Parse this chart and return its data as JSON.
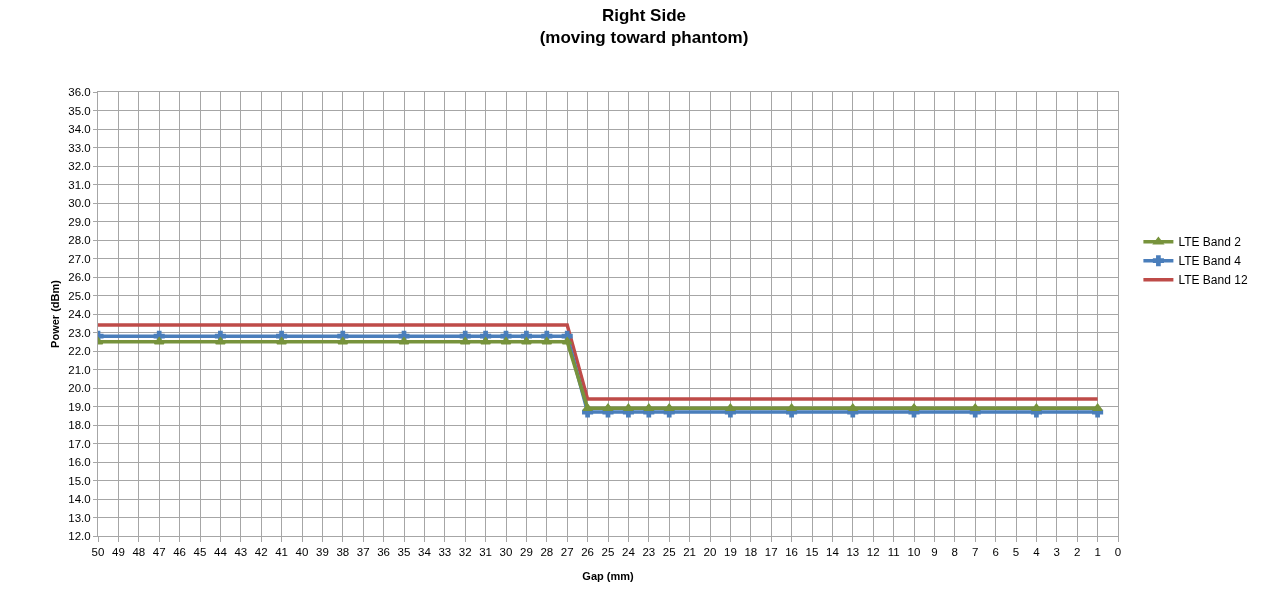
{
  "chart_data": {
    "type": "line",
    "title": "Right Side\n(moving toward phantom)",
    "xlabel": "Gap (mm)",
    "ylabel": "Power (dBm)",
    "categories": [
      "50",
      "49",
      "48",
      "47",
      "46",
      "45",
      "44",
      "43",
      "42",
      "41",
      "40",
      "39",
      "38",
      "37",
      "36",
      "35",
      "34",
      "33",
      "32",
      "31",
      "30",
      "29",
      "28",
      "27",
      "26",
      "25",
      "24",
      "23",
      "25",
      "21",
      "20",
      "19",
      "18",
      "17",
      "16",
      "15",
      "14",
      "13",
      "12",
      "11",
      "10",
      "9",
      "8",
      "7",
      "6",
      "5",
      "4",
      "3",
      "2",
      "1",
      "0"
    ],
    "series": [
      {
        "name": "LTE Band 2",
        "color": "#77933c",
        "marker": "triangle",
        "values": [
          22.5,
          null,
          null,
          22.5,
          null,
          null,
          22.5,
          null,
          null,
          22.5,
          null,
          null,
          22.5,
          null,
          null,
          22.5,
          null,
          null,
          22.5,
          22.5,
          22.5,
          22.5,
          22.5,
          22.5,
          18.9,
          18.9,
          18.9,
          18.9,
          18.9,
          null,
          null,
          18.9,
          null,
          null,
          18.9,
          null,
          null,
          18.9,
          null,
          null,
          18.9,
          null,
          null,
          18.9,
          null,
          null,
          18.9,
          null,
          null,
          18.9,
          null
        ]
      },
      {
        "name": "LTE Band 4",
        "color": "#4a7ebb",
        "marker": "cross",
        "values": [
          22.8,
          null,
          null,
          22.8,
          null,
          null,
          22.8,
          null,
          null,
          22.8,
          null,
          null,
          22.8,
          null,
          null,
          22.8,
          null,
          null,
          22.8,
          22.8,
          22.8,
          22.8,
          22.8,
          22.8,
          18.7,
          18.7,
          18.7,
          18.7,
          18.7,
          null,
          null,
          18.7,
          null,
          null,
          18.7,
          null,
          null,
          18.7,
          null,
          null,
          18.7,
          null,
          null,
          18.7,
          null,
          null,
          18.7,
          null,
          null,
          18.7,
          null
        ]
      },
      {
        "name": "LTE Band 12",
        "color": "#be4b48",
        "marker": "none",
        "values": [
          23.4,
          null,
          null,
          23.4,
          null,
          null,
          23.4,
          null,
          null,
          23.4,
          null,
          null,
          23.4,
          null,
          null,
          23.4,
          null,
          null,
          23.4,
          23.4,
          23.4,
          23.4,
          23.4,
          23.4,
          19.4,
          19.4,
          19.4,
          19.4,
          19.4,
          null,
          null,
          19.4,
          null,
          null,
          19.4,
          null,
          null,
          19.4,
          null,
          null,
          19.4,
          null,
          null,
          19.4,
          null,
          null,
          19.4,
          null,
          null,
          19.4,
          null
        ]
      }
    ],
    "ylim": [
      12,
      36
    ],
    "yticks": [
      {
        "value": 12,
        "label": "12.0"
      },
      {
        "value": 13,
        "label": "13.0"
      },
      {
        "value": 14,
        "label": "14.0"
      },
      {
        "value": 15,
        "label": "15.0"
      },
      {
        "value": 16,
        "label": "16.0"
      },
      {
        "value": 17,
        "label": "17.0"
      },
      {
        "value": 18,
        "label": "18.0"
      },
      {
        "value": 19,
        "label": "19.0"
      },
      {
        "value": 20,
        "label": "20.0"
      },
      {
        "value": 21,
        "label": "21.0"
      },
      {
        "value": 22,
        "label": "22.0"
      },
      {
        "value": 23,
        "label": "23.0"
      },
      {
        "value": 24,
        "label": "24.0"
      },
      {
        "value": 25,
        "label": "25.0"
      },
      {
        "value": 26,
        "label": "26.0"
      },
      {
        "value": 27,
        "label": "27.0"
      },
      {
        "value": 28,
        "label": "28.0"
      },
      {
        "value": 29,
        "label": "29.0"
      },
      {
        "value": 30,
        "label": "30.0"
      },
      {
        "value": 31,
        "label": "31.0"
      },
      {
        "value": 32,
        "label": "32.0"
      },
      {
        "value": 33,
        "label": "33.0"
      },
      {
        "value": 34,
        "label": "34.0"
      },
      {
        "value": 35,
        "label": "35.0"
      },
      {
        "value": 36,
        "label": "36.0"
      }
    ],
    "grid": true,
    "legend": "right",
    "line_style": "solid"
  }
}
